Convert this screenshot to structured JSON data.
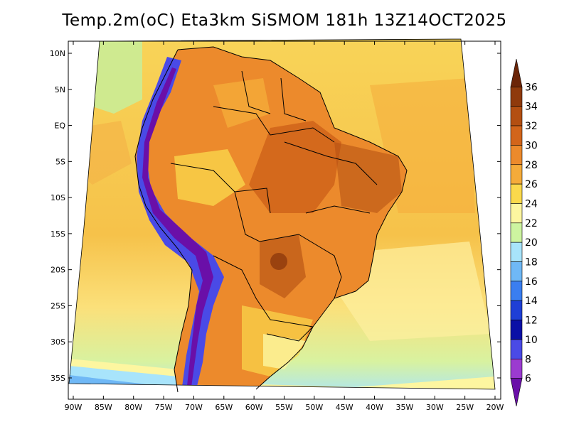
{
  "title": "Temp.2m(oC) Eta3km SiSMOM 181h 13Z14OCT2025",
  "map": {
    "lat_labels": [
      {
        "text": "10N",
        "lat": 10
      },
      {
        "text": "5N",
        "lat": 5
      },
      {
        "text": "EQ",
        "lat": 0
      },
      {
        "text": "5S",
        "lat": -5
      },
      {
        "text": "10S",
        "lat": -10
      },
      {
        "text": "15S",
        "lat": -15
      },
      {
        "text": "20S",
        "lat": -20
      },
      {
        "text": "25S",
        "lat": -25
      },
      {
        "text": "30S",
        "lat": -30
      },
      {
        "text": "35S",
        "lat": -35
      }
    ],
    "lon_labels": [
      {
        "text": "90W",
        "lon": -90
      },
      {
        "text": "85W",
        "lon": -85
      },
      {
        "text": "80W",
        "lon": -80
      },
      {
        "text": "75W",
        "lon": -75
      },
      {
        "text": "70W",
        "lon": -70
      },
      {
        "text": "65W",
        "lon": -65
      },
      {
        "text": "60W",
        "lon": -60
      },
      {
        "text": "55W",
        "lon": -55
      },
      {
        "text": "50W",
        "lon": -50
      },
      {
        "text": "45W",
        "lon": -45
      },
      {
        "text": "40W",
        "lon": -40
      },
      {
        "text": "35W",
        "lon": -35
      },
      {
        "text": "30W",
        "lon": -30
      },
      {
        "text": "25W",
        "lon": -25
      },
      {
        "text": "20W",
        "lon": -20
      }
    ]
  },
  "colorbar": {
    "levels": [
      "36",
      "34",
      "32",
      "30",
      "28",
      "26",
      "24",
      "22",
      "20",
      "18",
      "16",
      "14",
      "12",
      "10",
      "8",
      "6"
    ],
    "colors": [
      "#6b2508",
      "#8f3a0c",
      "#b34f12",
      "#d2651b",
      "#ec8a2c",
      "#f5ab3a",
      "#fbd94c",
      "#fdf6a0",
      "#cdf4a0",
      "#a8e4fb",
      "#6fb8f6",
      "#3a7ef0",
      "#1f3fd6",
      "#0a10a6",
      "#4a4ae6",
      "#9b3bd0",
      "#6a0fa8"
    ]
  },
  "palette": {
    "ocean_north": "#9ee0a0",
    "ocean_mid": "#f8d060",
    "ocean_south": "#c8f0a0",
    "land_hot": "#e88a30",
    "land_warm": "#f3b040",
    "andes_cold": "#6a0fa8"
  }
}
